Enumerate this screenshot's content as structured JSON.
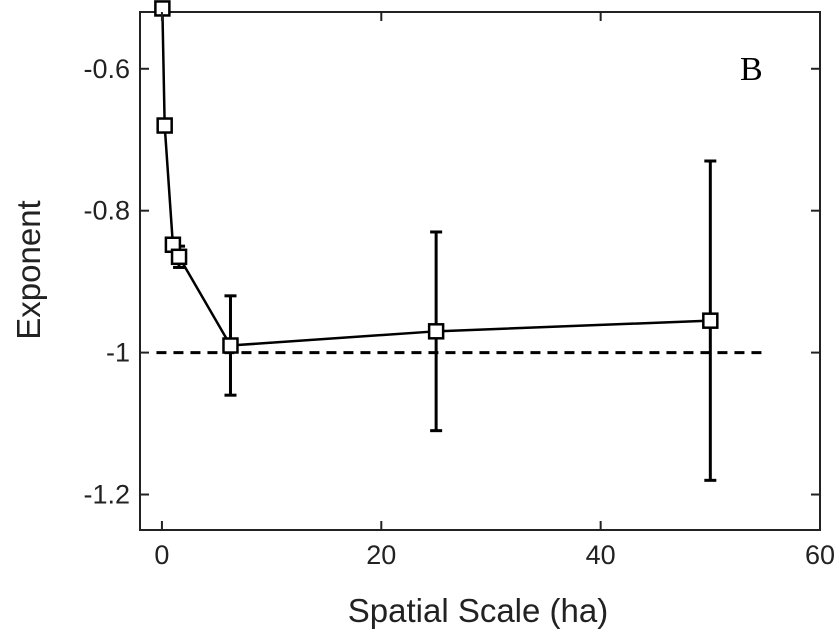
{
  "chart_data": {
    "type": "line",
    "panel_label": "B",
    "xlabel": "Spatial Scale (ha)",
    "ylabel": "Exponent",
    "xlim": [
      -2,
      60
    ],
    "ylim": [
      -1.25,
      -0.52
    ],
    "xticks": [
      0,
      20,
      40,
      60
    ],
    "yticks": [
      -0.6,
      -0.8,
      -1,
      -1.2
    ],
    "ytick_labels": [
      "-0.6",
      "-0.8",
      "-1",
      "-1.2"
    ],
    "grid": false,
    "reference_line": {
      "y": -1.0,
      "style": "dashed"
    },
    "series": [
      {
        "x": [
          0.04,
          0.25,
          1.0,
          1.56,
          6.25,
          25,
          50
        ],
        "y": [
          -0.515,
          -0.68,
          -0.848,
          -0.865,
          -0.99,
          -0.97,
          -0.955
        ],
        "err_low": [
          null,
          null,
          -0.857,
          -0.88,
          -1.06,
          -1.11,
          -1.18
        ],
        "err_high": [
          null,
          null,
          -0.839,
          -0.85,
          -0.92,
          -0.83,
          -0.73
        ],
        "marker": "square"
      }
    ]
  }
}
